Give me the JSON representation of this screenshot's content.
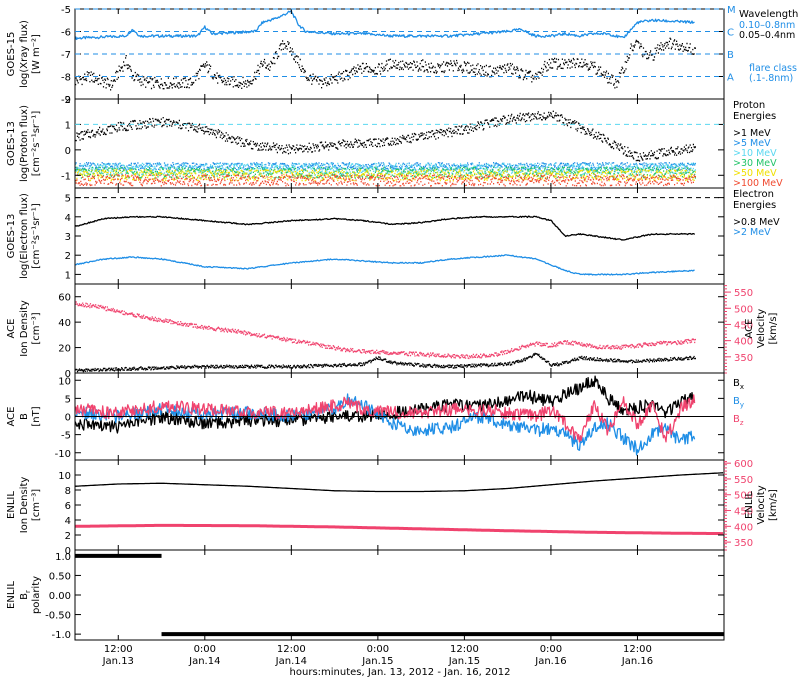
{
  "colors": {
    "black": "#000000",
    "blue": "#1f8ee6",
    "cyan": "#5ad8f0",
    "pink": "#f0436e",
    "green": "#22c46a",
    "yellow": "#f0e000",
    "orange": "#f09a20",
    "red": "#f04a30"
  },
  "time_axis": {
    "xlabel": "hours:minutes, Jan. 13, 2012 - Jan. 16, 2012",
    "xlim": [
      0,
      90
    ],
    "ticks": [
      {
        "x": 6,
        "time": "12:00",
        "date": "Jan.13"
      },
      {
        "x": 18,
        "time": "0:00",
        "date": "Jan.14"
      },
      {
        "x": 30,
        "time": "12:00",
        "date": "Jan.14"
      },
      {
        "x": 42,
        "time": "0:00",
        "date": "Jan.15"
      },
      {
        "x": 54,
        "time": "12:00",
        "date": "Jan.15"
      },
      {
        "x": 66,
        "time": "0:00",
        "date": "Jan.16"
      },
      {
        "x": 78,
        "time": "12:00",
        "date": "Jan.16"
      }
    ]
  },
  "chart_data": [
    {
      "type": "line",
      "ylabel": [
        "GOES-15",
        "log(Xray flux)",
        "[W m⁻²]"
      ],
      "ylim": [
        -9,
        -5
      ],
      "yticks": [
        -5,
        -6,
        -7,
        -8,
        -9
      ],
      "flare_levels": [
        {
          "letter": "M",
          "value": -5
        },
        {
          "letter": "C",
          "value": -6
        },
        {
          "letter": "B",
          "value": -7
        },
        {
          "letter": "A",
          "value": -8
        }
      ],
      "legend_title": "Wavelength",
      "legend_note": [
        "flare class",
        "(.1-.8nm)"
      ],
      "series": [
        {
          "name": "0.10–0.8nm",
          "color": "#1f8ee6",
          "x": [
            0,
            7,
            8,
            9,
            17,
            18,
            19,
            25,
            26,
            28,
            30,
            31,
            32,
            36,
            40,
            44,
            48,
            52,
            56,
            60,
            62,
            63,
            64,
            66,
            68,
            70,
            72,
            74,
            76,
            78,
            80,
            86
          ],
          "y": [
            -6.3,
            -6.2,
            -5.9,
            -6.2,
            -6.2,
            -5.8,
            -6.1,
            -6.0,
            -5.6,
            -5.4,
            -5.1,
            -5.7,
            -6.0,
            -6.1,
            -6.1,
            -6.2,
            -6.2,
            -6.2,
            -6.1,
            -6.0,
            -5.9,
            -6.1,
            -6.2,
            -6.2,
            -6.1,
            -6.2,
            -6.1,
            -6.1,
            -6.3,
            -5.6,
            -5.5,
            -5.6
          ]
        },
        {
          "name": "0.05–0.4nm",
          "color": "#000000",
          "style": "dots",
          "x": [
            0,
            2,
            5,
            6,
            7,
            8,
            10,
            14,
            16,
            17,
            18,
            20,
            24,
            25,
            26,
            27,
            28,
            29,
            30,
            31,
            32,
            34,
            36,
            38,
            40,
            42,
            44,
            46,
            48,
            50,
            52,
            54,
            56,
            58,
            60,
            62,
            63,
            64,
            65,
            66,
            68,
            70,
            72,
            74,
            75,
            76,
            77,
            78,
            79,
            80,
            81,
            82,
            84,
            86
          ],
          "y": [
            -8.2,
            -8.0,
            -8.4,
            -7.8,
            -7.3,
            -8.0,
            -8.3,
            -8.3,
            -8.3,
            -7.9,
            -7.5,
            -8.2,
            -8.3,
            -7.9,
            -7.4,
            -7.6,
            -7.0,
            -6.5,
            -6.9,
            -7.4,
            -8.0,
            -8.3,
            -8.1,
            -7.9,
            -7.6,
            -7.7,
            -7.4,
            -7.6,
            -7.5,
            -7.7,
            -7.5,
            -7.6,
            -7.7,
            -7.8,
            -7.6,
            -7.9,
            -8.0,
            -8.1,
            -7.6,
            -7.4,
            -7.5,
            -7.3,
            -7.6,
            -8.1,
            -8.3,
            -7.7,
            -6.8,
            -6.5,
            -7.1,
            -7.1,
            -6.7,
            -6.5,
            -6.6,
            -6.9
          ]
        }
      ]
    },
    {
      "type": "scatter",
      "ylabel": [
        "GOES-13",
        "log(Proton flux)",
        "[cm⁻²s⁻¹sr⁻¹]"
      ],
      "ylim": [
        -1.5,
        2.0
      ],
      "yticks": [
        2,
        1,
        0,
        -1
      ],
      "legend_title": [
        "Proton",
        "Energies"
      ],
      "series": [
        {
          "name": ">1 MeV",
          "color": "#000000",
          "x": [
            0,
            6,
            12,
            18,
            24,
            30,
            36,
            42,
            48,
            54,
            60,
            66,
            72,
            78,
            86
          ],
          "y": [
            0.5,
            0.9,
            1.1,
            0.8,
            0.2,
            0.0,
            0.2,
            0.3,
            0.5,
            0.8,
            1.2,
            1.4,
            0.6,
            -0.3,
            0.1
          ]
        },
        {
          "name": ">5 MeV",
          "color": "#1f8ee6",
          "x": [
            0,
            86
          ],
          "y": [
            -0.65,
            -0.65
          ]
        },
        {
          "name": ">10 MeV",
          "color": "#5ad8f0",
          "x": [
            0,
            86
          ],
          "y": [
            -0.75,
            -0.75
          ]
        },
        {
          "name": ">30 MeV",
          "color": "#22c46a",
          "x": [
            0,
            86
          ],
          "y": [
            -0.9,
            -0.9
          ]
        },
        {
          "name": ">50 MeV",
          "color": "#f0e000",
          "x": [
            0,
            86
          ],
          "y": [
            -1.0,
            -1.0
          ]
        },
        {
          "name": ">100 MeV",
          "color": "#f04a30",
          "x": [
            0,
            86
          ],
          "y": [
            -1.2,
            -1.2
          ]
        }
      ],
      "threshold": 1.0
    },
    {
      "type": "line",
      "ylabel": [
        "GOES-13",
        "log(Electron flux)",
        "[cm⁻²s⁻¹sr⁻¹]"
      ],
      "ylim": [
        0.5,
        5.5
      ],
      "yticks": [
        5,
        4,
        3,
        2,
        1
      ],
      "legend_title": [
        "Electron",
        "Energies"
      ],
      "series": [
        {
          "name": ">0.8 MeV",
          "color": "#000000",
          "x": [
            0,
            4,
            8,
            12,
            18,
            24,
            30,
            36,
            40,
            44,
            48,
            52,
            56,
            60,
            64,
            66,
            67,
            68,
            70,
            72,
            74,
            76,
            80,
            86
          ],
          "y": [
            3.5,
            3.9,
            4.0,
            4.0,
            3.8,
            3.6,
            3.8,
            3.9,
            3.8,
            3.6,
            3.7,
            3.9,
            4.0,
            4.0,
            4.0,
            3.8,
            3.4,
            3.0,
            3.1,
            3.0,
            2.9,
            2.8,
            3.1,
            3.1
          ]
        },
        {
          "name": ">2 MeV",
          "color": "#1f8ee6",
          "x": [
            0,
            4,
            8,
            12,
            18,
            24,
            30,
            36,
            40,
            44,
            48,
            52,
            56,
            60,
            64,
            66,
            68,
            70,
            72,
            76,
            80,
            86
          ],
          "y": [
            1.5,
            1.8,
            1.9,
            1.8,
            1.4,
            1.3,
            1.6,
            1.8,
            1.7,
            1.6,
            1.6,
            1.8,
            1.9,
            2.0,
            1.8,
            1.5,
            1.2,
            1.0,
            1.0,
            1.0,
            1.1,
            1.2
          ]
        }
      ],
      "threshold": 5.0
    },
    {
      "type": "line",
      "ylabel": [
        "ACE",
        "Ion Density",
        "[cm⁻³]"
      ],
      "ylim": [
        0,
        70
      ],
      "yticks": [
        60,
        40,
        20,
        0
      ],
      "y2label": [
        "ACE",
        "Velocity",
        "[km/s]"
      ],
      "y2lim": [
        300,
        575
      ],
      "y2ticks": [
        350,
        400,
        450,
        500,
        550
      ],
      "series": [
        {
          "name": "Ion Density",
          "color": "#000000",
          "x": [
            0,
            6,
            12,
            18,
            24,
            30,
            36,
            40,
            42,
            44,
            48,
            52,
            56,
            60,
            62,
            64,
            66,
            68,
            70,
            74,
            78,
            80,
            86
          ],
          "y": [
            2,
            3,
            4,
            5,
            5,
            5,
            6,
            7,
            12,
            8,
            6,
            5,
            6,
            7,
            10,
            15,
            6,
            8,
            12,
            10,
            9,
            10,
            12
          ]
        },
        {
          "name": "Velocity",
          "color": "#f0436e",
          "axis": "right",
          "x": [
            0,
            3,
            6,
            10,
            14,
            18,
            22,
            26,
            30,
            34,
            38,
            42,
            46,
            50,
            54,
            58,
            62,
            64,
            66,
            68,
            70,
            72,
            76,
            80,
            84,
            86
          ],
          "y": [
            515,
            505,
            490,
            470,
            455,
            440,
            430,
            415,
            400,
            385,
            370,
            365,
            360,
            355,
            350,
            355,
            380,
            390,
            385,
            395,
            390,
            380,
            380,
            390,
            395,
            400
          ]
        }
      ]
    },
    {
      "type": "line",
      "ylabel": [
        "ACE",
        "B",
        "[nT]"
      ],
      "ylim": [
        -12,
        12
      ],
      "yticks": [
        10,
        5,
        0,
        -5,
        -10
      ],
      "series": [
        {
          "name": "Bx",
          "label": "B",
          "sub": "x",
          "color": "#000000",
          "x": [
            0,
            6,
            12,
            18,
            24,
            30,
            36,
            40,
            44,
            48,
            52,
            56,
            60,
            62,
            64,
            66,
            68,
            70,
            72,
            74,
            76,
            80,
            82,
            84,
            86
          ],
          "y": [
            -2,
            -3,
            0,
            -2,
            -1,
            -1,
            0,
            0,
            1,
            2,
            3,
            3,
            4,
            6,
            5,
            4,
            6,
            8,
            10,
            5,
            2,
            3,
            1,
            4,
            6
          ]
        },
        {
          "name": "By",
          "label": "B",
          "sub": "y",
          "color": "#1f8ee6",
          "x": [
            0,
            6,
            12,
            18,
            24,
            30,
            36,
            38,
            40,
            44,
            48,
            52,
            56,
            60,
            64,
            66,
            68,
            70,
            72,
            74,
            76,
            78,
            80,
            82,
            84,
            86
          ],
          "y": [
            1,
            0,
            2,
            1,
            1,
            0,
            2,
            5,
            3,
            -2,
            -4,
            -3,
            0,
            -2,
            -4,
            -3,
            -5,
            -8,
            -3,
            -2,
            -6,
            -9,
            -5,
            -3,
            -7,
            -5
          ]
        },
        {
          "name": "Bz",
          "label": "B",
          "sub": "z",
          "color": "#f0436e",
          "x": [
            0,
            6,
            12,
            18,
            24,
            30,
            36,
            38,
            40,
            44,
            48,
            52,
            56,
            60,
            64,
            66,
            68,
            70,
            72,
            74,
            76,
            78,
            80,
            82,
            84,
            86
          ],
          "y": [
            2,
            1,
            3,
            2,
            1,
            1,
            3,
            4,
            2,
            1,
            1,
            2,
            2,
            1,
            0,
            2,
            -2,
            -6,
            3,
            -4,
            4,
            -2,
            3,
            -6,
            2,
            5
          ]
        }
      ]
    },
    {
      "type": "line",
      "ylabel": [
        "ENLIL",
        "Ion Density",
        "[cm⁻³]"
      ],
      "ylim": [
        0,
        12
      ],
      "yticks": [
        10,
        8,
        6,
        4,
        2,
        0
      ],
      "y2label": [
        "ENLIL",
        "Velocity",
        "[km/s]"
      ],
      "y2lim": [
        325,
        610
      ],
      "y2ticks": [
        350,
        400,
        450,
        500,
        550,
        600
      ],
      "series": [
        {
          "name": "Ion Density",
          "color": "#000000",
          "x": [
            0,
            6,
            12,
            18,
            24,
            30,
            36,
            42,
            48,
            54,
            60,
            66,
            72,
            78,
            84,
            90
          ],
          "y": [
            8.5,
            8.8,
            8.9,
            8.7,
            8.5,
            8.2,
            7.9,
            7.8,
            7.8,
            7.9,
            8.2,
            8.7,
            9.2,
            9.6,
            10.0,
            10.3
          ]
        },
        {
          "name": "Velocity",
          "color": "#f0436e",
          "axis": "right",
          "x": [
            0,
            12,
            24,
            36,
            48,
            60,
            72,
            84,
            90
          ],
          "y": [
            400,
            403,
            402,
            398,
            392,
            386,
            381,
            378,
            377
          ]
        }
      ]
    },
    {
      "type": "line",
      "ylabel": [
        "ENLIL",
        "B",
        "polarity"
      ],
      "ylabel_sub": "r",
      "ylim": [
        -1.15,
        1.15
      ],
      "yticks": [
        1.0,
        0.5,
        0.0,
        -0.5,
        -1.0
      ],
      "yticklabels": [
        "1.0",
        "0.50",
        "0.00",
        "-0.50",
        "-1.0"
      ],
      "series": [
        {
          "name": "Br polarity",
          "color": "#000000",
          "segments": [
            {
              "x": [
                0,
                12
              ],
              "y": 1.0
            },
            {
              "x": [
                12,
                90
              ],
              "y": -1.0
            }
          ]
        }
      ]
    }
  ]
}
